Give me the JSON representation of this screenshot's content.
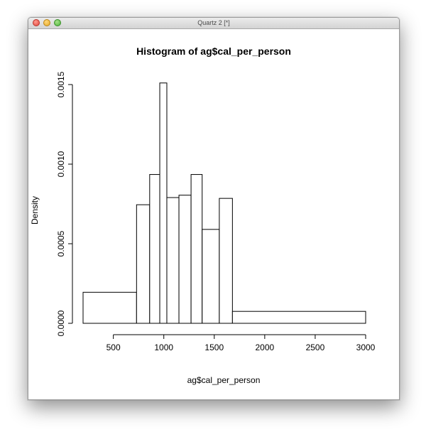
{
  "window": {
    "title": "Quartz 2 [*]"
  },
  "chart_data": {
    "type": "bar",
    "title": "Histogram of ag$cal_per_person",
    "xlabel": "ag$cal_per_person",
    "ylabel": "Density",
    "bins": [
      {
        "x0": 200,
        "x1": 730,
        "density": 0.000195
      },
      {
        "x0": 730,
        "x1": 860,
        "density": 0.000745
      },
      {
        "x0": 860,
        "x1": 960,
        "density": 0.000935
      },
      {
        "x0": 960,
        "x1": 1030,
        "density": 0.00151
      },
      {
        "x0": 1030,
        "x1": 1150,
        "density": 0.00079
      },
      {
        "x0": 1150,
        "x1": 1270,
        "density": 0.000805
      },
      {
        "x0": 1270,
        "x1": 1380,
        "density": 0.000935
      },
      {
        "x0": 1380,
        "x1": 1550,
        "density": 0.00059
      },
      {
        "x0": 1550,
        "x1": 1680,
        "density": 0.000785
      },
      {
        "x0": 1680,
        "x1": 3000,
        "density": 7.5e-05
      }
    ],
    "x_ticks": [
      500,
      1000,
      1500,
      2000,
      2500,
      3000
    ],
    "y_ticks": [
      0.0,
      0.0005,
      0.001,
      0.0015
    ],
    "x_tick_labels": [
      "500",
      "1000",
      "1500",
      "2000",
      "2500",
      "3000"
    ],
    "y_tick_labels": [
      "0.0000",
      "0.0005",
      "0.0010",
      "0.0015"
    ],
    "xlim": [
      200,
      3000
    ],
    "ylim": [
      0,
      0.0015
    ],
    "grid": false,
    "colors": {
      "fill": "#ffffff",
      "stroke": "#000000"
    }
  }
}
